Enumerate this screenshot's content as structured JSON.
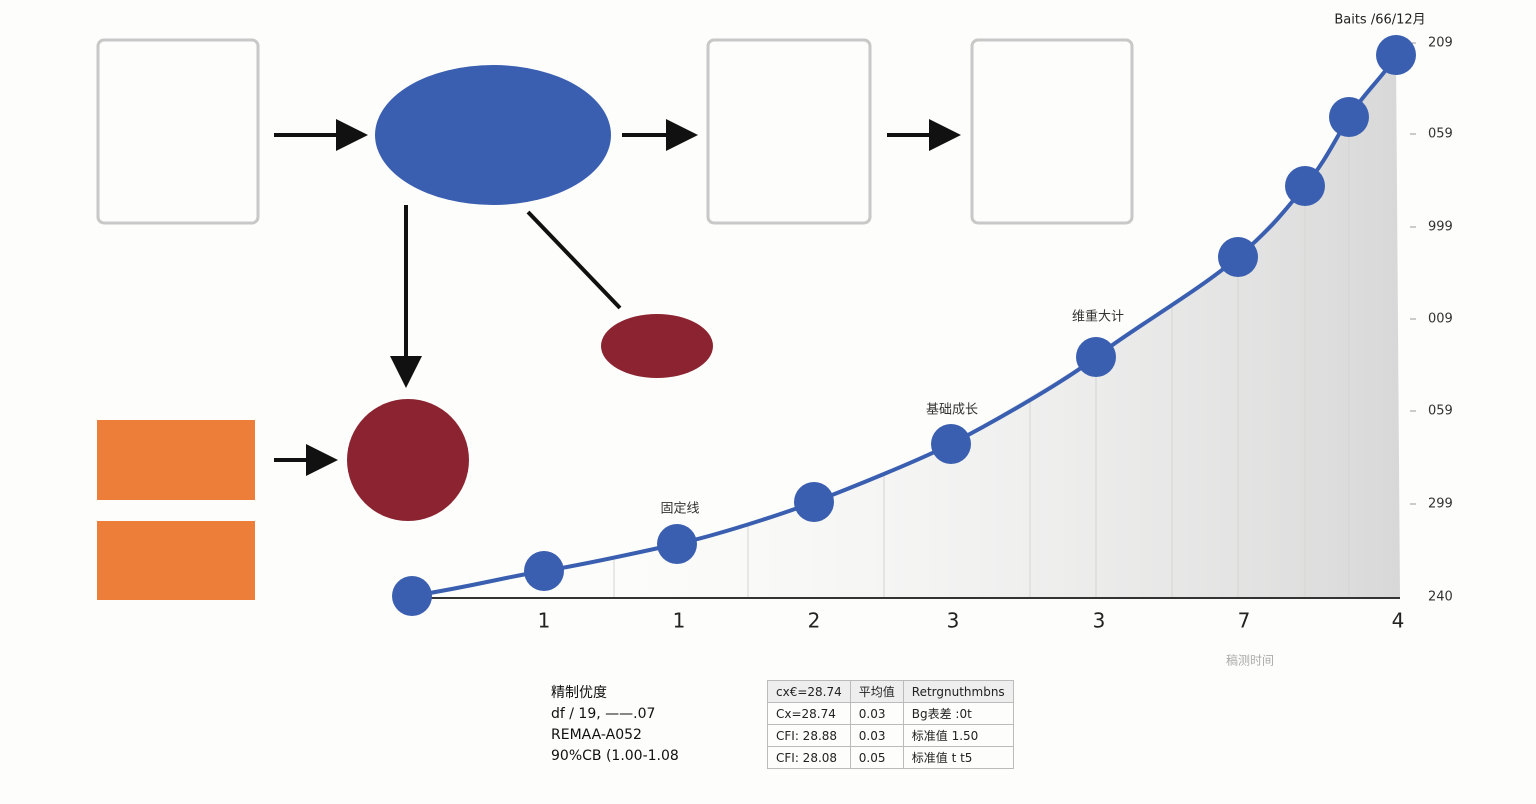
{
  "chart": {
    "caption": "Baits /66/12月",
    "annotations": [
      "固定线",
      "基础成长",
      "维重大计"
    ],
    "x_axis_label": "稿测时间",
    "y_labels": [
      "209",
      "059",
      "999",
      "009",
      "059",
      "299",
      "240"
    ],
    "x_labels": [
      "1",
      "1",
      "2",
      "3",
      "3",
      "7",
      "4"
    ]
  },
  "stats": [
    "精制优度",
    "df / 19, ——.07",
    "REMAA-A052",
    "90%CB (1.00-1.08"
  ],
  "table": {
    "rows": [
      [
        "cx€=28.74",
        "平均值",
        "Retrgnuthmbns"
      ],
      [
        "Cx=28.74",
        "0.03",
        "Bg表差 :0t"
      ],
      [
        "CFI: 28.88",
        "0.03",
        "标准值 1.50"
      ],
      [
        "CFI: 28.08",
        "0.05",
        "标准值 t t5"
      ]
    ]
  }
}
